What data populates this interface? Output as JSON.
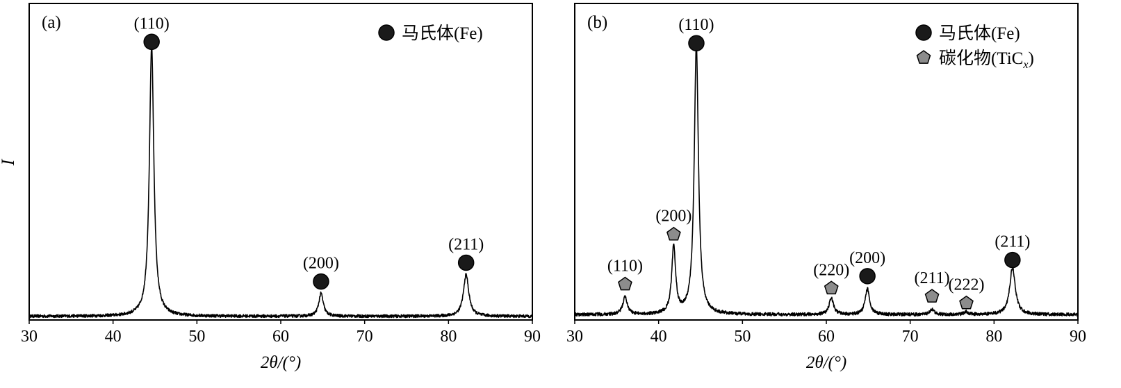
{
  "y_axis_label": "I",
  "chart_data": [
    {
      "type": "line",
      "panel_label": "(a)",
      "xlabel": "2θ/(°)",
      "ylabel": "I",
      "xlim": [
        30,
        90
      ],
      "ylim": [
        0,
        100
      ],
      "xticks": [
        30,
        40,
        50,
        60,
        70,
        80,
        90
      ],
      "grid": false,
      "legend_position": "top-right",
      "legend": [
        {
          "label": "马氏体(Fe)",
          "marker": "circle",
          "color": "#1a1a1a"
        }
      ],
      "peaks": [
        {
          "x": 44.6,
          "y": 100,
          "width": 0.32
        },
        {
          "x": 64.8,
          "y": 8.5,
          "width": 0.32
        },
        {
          "x": 82.1,
          "y": 15.5,
          "width": 0.38
        }
      ],
      "baseline": 0.6,
      "noise": 0.55,
      "annotations": [
        {
          "x": 44.6,
          "y": 102.5,
          "marker": "circle",
          "label": "(110)"
        },
        {
          "x": 64.8,
          "y": 13.5,
          "marker": "circle",
          "label": "(200)"
        },
        {
          "x": 82.1,
          "y": 20.5,
          "marker": "circle",
          "label": "(211)"
        }
      ]
    },
    {
      "type": "line",
      "panel_label": "(b)",
      "xlabel": "2θ/(°)",
      "xlim": [
        30,
        90
      ],
      "ylim": [
        0,
        100
      ],
      "xticks": [
        30,
        40,
        50,
        60,
        70,
        80,
        90
      ],
      "grid": false,
      "legend_position": "top-right",
      "legend": [
        {
          "label": "马氏体(Fe)",
          "marker": "circle",
          "color": "#1a1a1a"
        },
        {
          "label": "碳化物(TiC",
          "subscript": "x",
          "marker": "pentagon",
          "color": "#8c8c8c"
        }
      ],
      "peaks": [
        {
          "x": 36.0,
          "y": 6.5,
          "width": 0.32
        },
        {
          "x": 41.8,
          "y": 25,
          "width": 0.28
        },
        {
          "x": 44.5,
          "y": 100,
          "width": 0.3
        },
        {
          "x": 60.6,
          "y": 6,
          "width": 0.32
        },
        {
          "x": 64.9,
          "y": 9.5,
          "width": 0.32
        },
        {
          "x": 72.6,
          "y": 2,
          "width": 0.3
        },
        {
          "x": 76.7,
          "y": 1,
          "width": 0.3
        },
        {
          "x": 82.2,
          "y": 17.5,
          "width": 0.4
        }
      ],
      "baseline": 1.2,
      "noise": 0.6,
      "annotations": [
        {
          "x": 36.0,
          "y": 12.5,
          "marker": "pentagon",
          "label": "(110)"
        },
        {
          "x": 41.8,
          "y": 31,
          "marker": "pentagon",
          "label": "(200)"
        },
        {
          "x": 44.5,
          "y": 102,
          "marker": "circle",
          "label": "(110)"
        },
        {
          "x": 60.6,
          "y": 11,
          "marker": "pentagon",
          "label": "(220)"
        },
        {
          "x": 64.9,
          "y": 15.5,
          "marker": "circle",
          "label": "(200)"
        },
        {
          "x": 72.6,
          "y": 8,
          "marker": "pentagon",
          "label": "(211)"
        },
        {
          "x": 76.7,
          "y": 5.5,
          "marker": "pentagon",
          "label": "(222)"
        },
        {
          "x": 82.2,
          "y": 21.5,
          "marker": "circle",
          "label": "(211)"
        }
      ]
    }
  ]
}
